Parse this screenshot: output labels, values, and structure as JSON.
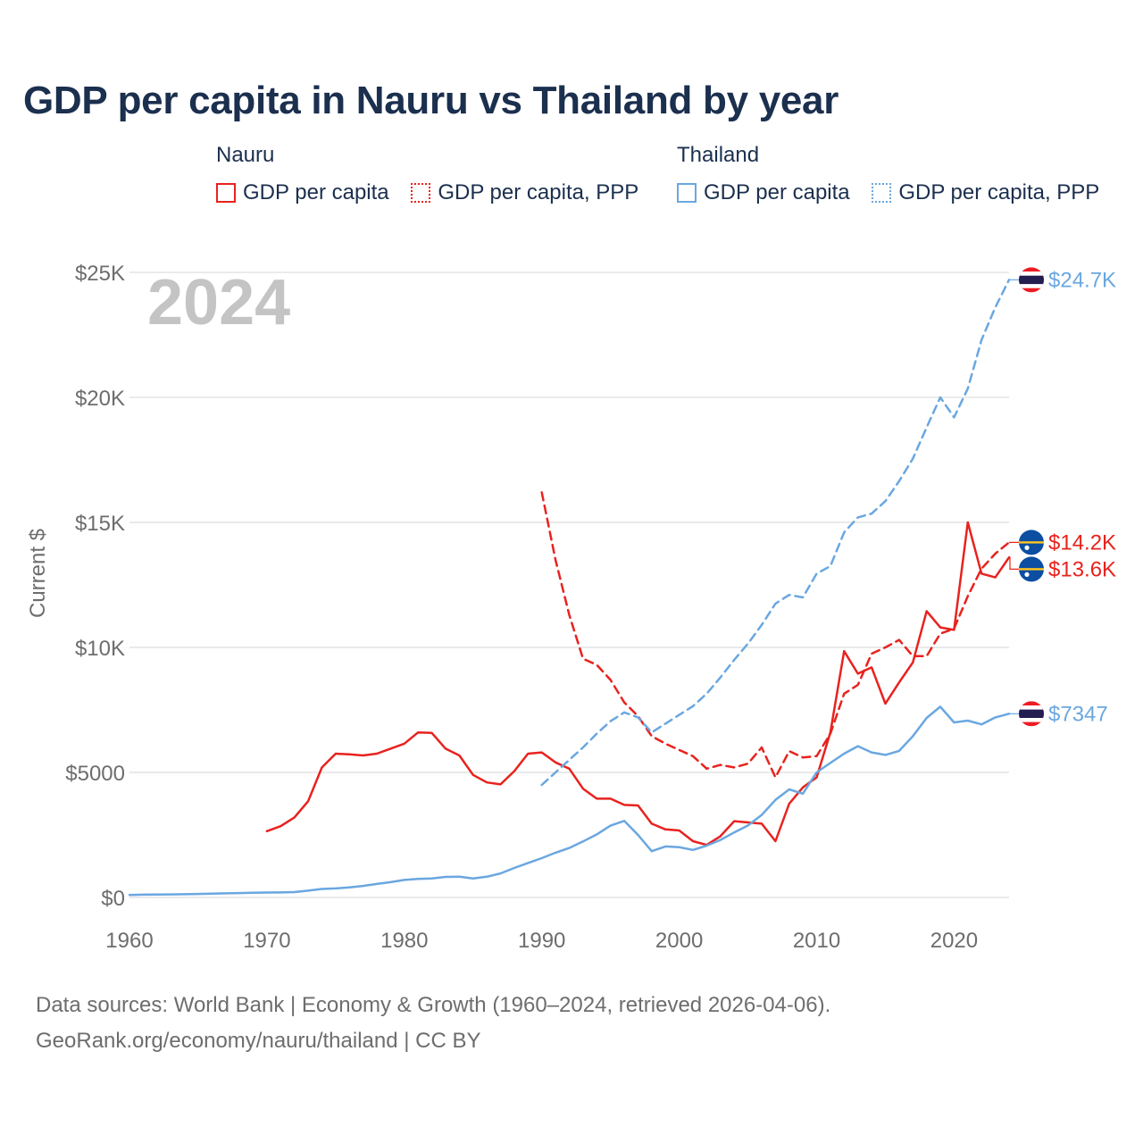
{
  "title": "GDP per capita in Nauru vs Thailand by year",
  "legend": {
    "nauru": {
      "name": "Nauru",
      "gdp": "GDP per capita",
      "ppp": "GDP per capita, PPP"
    },
    "thailand": {
      "name": "Thailand",
      "gdp": "GDP per capita",
      "ppp": "GDP per capita, PPP"
    }
  },
  "colors": {
    "nauru": "#e8221e",
    "thailand": "#6aa7e0",
    "title": "#1b2f4e",
    "year_watermark": "#c4c4c4"
  },
  "footer": {
    "line1": "Data sources: World Bank | Economy & Growth (1960–2024, retrieved 2026-04-06).",
    "line2": "GeoRank.org/economy/nauru/thailand | CC BY"
  },
  "chart_data": {
    "type": "line",
    "year_label": "2024",
    "ylabel": "Current $",
    "xlim": [
      1960,
      2024
    ],
    "ylim": [
      0,
      25000
    ],
    "xticks": [
      {
        "value": 1960,
        "label": "1960"
      },
      {
        "value": 1970,
        "label": "1970"
      },
      {
        "value": 1980,
        "label": "1980"
      },
      {
        "value": 1990,
        "label": "1990"
      },
      {
        "value": 2000,
        "label": "2000"
      },
      {
        "value": 2010,
        "label": "2010"
      },
      {
        "value": 2020,
        "label": "2020"
      }
    ],
    "yticks": [
      {
        "value": 0,
        "label": "$0"
      },
      {
        "value": 5000,
        "label": "$5000"
      },
      {
        "value": 10000,
        "label": "$10K"
      },
      {
        "value": 15000,
        "label": "$15K"
      },
      {
        "value": 20000,
        "label": "$20K"
      },
      {
        "value": 25000,
        "label": "$25K"
      }
    ],
    "series": [
      {
        "name": "Nauru GDP per capita",
        "country": "Nauru",
        "style": "solid",
        "color": "#e8221e",
        "end_label": "$13.6K",
        "end_value": 13600,
        "flag": "nauru",
        "points": [
          [
            1970,
            2650
          ],
          [
            1971,
            2850
          ],
          [
            1972,
            3200
          ],
          [
            1973,
            3850
          ],
          [
            1974,
            5200
          ],
          [
            1975,
            5750
          ],
          [
            1976,
            5720
          ],
          [
            1977,
            5680
          ],
          [
            1978,
            5750
          ],
          [
            1979,
            5950
          ],
          [
            1980,
            6150
          ],
          [
            1981,
            6600
          ],
          [
            1982,
            6580
          ],
          [
            1983,
            5950
          ],
          [
            1984,
            5680
          ],
          [
            1985,
            4900
          ],
          [
            1986,
            4600
          ],
          [
            1987,
            4520
          ],
          [
            1988,
            5050
          ],
          [
            1989,
            5750
          ],
          [
            1990,
            5800
          ],
          [
            1991,
            5400
          ],
          [
            1992,
            5150
          ],
          [
            1993,
            4350
          ],
          [
            1994,
            3950
          ],
          [
            1995,
            3950
          ],
          [
            1996,
            3700
          ],
          [
            1997,
            3680
          ],
          [
            1998,
            2950
          ],
          [
            1999,
            2720
          ],
          [
            2000,
            2680
          ],
          [
            2001,
            2250
          ],
          [
            2002,
            2100
          ],
          [
            2003,
            2450
          ],
          [
            2004,
            3050
          ],
          [
            2005,
            3000
          ],
          [
            2006,
            2950
          ],
          [
            2007,
            2250
          ],
          [
            2008,
            3750
          ],
          [
            2009,
            4400
          ],
          [
            2010,
            4800
          ],
          [
            2011,
            6600
          ],
          [
            2012,
            9850
          ],
          [
            2013,
            8950
          ],
          [
            2014,
            9200
          ],
          [
            2015,
            7750
          ],
          [
            2016,
            8600
          ],
          [
            2017,
            9400
          ],
          [
            2018,
            11450
          ],
          [
            2019,
            10800
          ],
          [
            2020,
            10700
          ],
          [
            2021,
            15000
          ],
          [
            2022,
            12950
          ],
          [
            2023,
            12800
          ],
          [
            2024,
            13600
          ]
        ]
      },
      {
        "name": "Nauru GDP per capita, PPP",
        "country": "Nauru",
        "style": "dashed",
        "color": "#e8221e",
        "end_label": "$14.2K",
        "end_value": 14200,
        "flag": "nauru",
        "points": [
          [
            1990,
            16200
          ],
          [
            1991,
            13500
          ],
          [
            1992,
            11300
          ],
          [
            1993,
            9550
          ],
          [
            1994,
            9300
          ],
          [
            1995,
            8700
          ],
          [
            1996,
            7800
          ],
          [
            1997,
            7250
          ],
          [
            1998,
            6450
          ],
          [
            1999,
            6150
          ],
          [
            2000,
            5900
          ],
          [
            2001,
            5650
          ],
          [
            2002,
            5150
          ],
          [
            2003,
            5300
          ],
          [
            2004,
            5200
          ],
          [
            2005,
            5350
          ],
          [
            2006,
            6000
          ],
          [
            2007,
            4800
          ],
          [
            2008,
            5850
          ],
          [
            2009,
            5600
          ],
          [
            2010,
            5650
          ],
          [
            2011,
            6550
          ],
          [
            2012,
            8150
          ],
          [
            2013,
            8500
          ],
          [
            2014,
            9750
          ],
          [
            2015,
            10000
          ],
          [
            2016,
            10300
          ],
          [
            2017,
            9650
          ],
          [
            2018,
            9650
          ],
          [
            2019,
            10550
          ],
          [
            2020,
            10750
          ],
          [
            2021,
            12050
          ],
          [
            2022,
            13150
          ],
          [
            2023,
            13750
          ],
          [
            2024,
            14200
          ]
        ]
      },
      {
        "name": "Thailand GDP per capita",
        "country": "Thailand",
        "style": "solid",
        "color": "#6aa7e0",
        "end_label": "$7347",
        "end_value": 7347,
        "flag": "thailand",
        "points": [
          [
            1960,
            100
          ],
          [
            1961,
            110
          ],
          [
            1962,
            115
          ],
          [
            1963,
            120
          ],
          [
            1964,
            130
          ],
          [
            1965,
            140
          ],
          [
            1966,
            155
          ],
          [
            1967,
            165
          ],
          [
            1968,
            175
          ],
          [
            1969,
            185
          ],
          [
            1970,
            195
          ],
          [
            1971,
            200
          ],
          [
            1972,
            215
          ],
          [
            1973,
            270
          ],
          [
            1974,
            340
          ],
          [
            1975,
            360
          ],
          [
            1976,
            400
          ],
          [
            1977,
            460
          ],
          [
            1978,
            540
          ],
          [
            1979,
            610
          ],
          [
            1980,
            700
          ],
          [
            1981,
            740
          ],
          [
            1982,
            760
          ],
          [
            1983,
            820
          ],
          [
            1984,
            830
          ],
          [
            1985,
            760
          ],
          [
            1986,
            830
          ],
          [
            1987,
            960
          ],
          [
            1988,
            1180
          ],
          [
            1989,
            1380
          ],
          [
            1990,
            1570
          ],
          [
            1991,
            1790
          ],
          [
            1992,
            1980
          ],
          [
            1993,
            2240
          ],
          [
            1994,
            2520
          ],
          [
            1995,
            2870
          ],
          [
            1996,
            3060
          ],
          [
            1997,
            2500
          ],
          [
            1998,
            1850
          ],
          [
            1999,
            2040
          ],
          [
            2000,
            2010
          ],
          [
            2001,
            1900
          ],
          [
            2002,
            2070
          ],
          [
            2003,
            2300
          ],
          [
            2004,
            2600
          ],
          [
            2005,
            2880
          ],
          [
            2006,
            3300
          ],
          [
            2007,
            3900
          ],
          [
            2008,
            4320
          ],
          [
            2009,
            4150
          ],
          [
            2010,
            5000
          ],
          [
            2011,
            5380
          ],
          [
            2012,
            5750
          ],
          [
            2013,
            6050
          ],
          [
            2014,
            5800
          ],
          [
            2015,
            5700
          ],
          [
            2016,
            5860
          ],
          [
            2017,
            6450
          ],
          [
            2018,
            7180
          ],
          [
            2019,
            7630
          ],
          [
            2020,
            7000
          ],
          [
            2021,
            7070
          ],
          [
            2022,
            6920
          ],
          [
            2023,
            7200
          ],
          [
            2024,
            7347
          ]
        ]
      },
      {
        "name": "Thailand GDP per capita, PPP",
        "country": "Thailand",
        "style": "dashed",
        "color": "#6aa7e0",
        "end_label": "$24.7K",
        "end_value": 24700,
        "flag": "thailand",
        "points": [
          [
            1990,
            4500
          ],
          [
            1991,
            5000
          ],
          [
            1992,
            5500
          ],
          [
            1993,
            6000
          ],
          [
            1994,
            6550
          ],
          [
            1995,
            7050
          ],
          [
            1996,
            7400
          ],
          [
            1997,
            7200
          ],
          [
            1998,
            6600
          ],
          [
            1999,
            6950
          ],
          [
            2000,
            7300
          ],
          [
            2001,
            7650
          ],
          [
            2002,
            8150
          ],
          [
            2003,
            8800
          ],
          [
            2004,
            9500
          ],
          [
            2005,
            10150
          ],
          [
            2006,
            10900
          ],
          [
            2007,
            11750
          ],
          [
            2008,
            12100
          ],
          [
            2009,
            12000
          ],
          [
            2010,
            12950
          ],
          [
            2011,
            13250
          ],
          [
            2012,
            14600
          ],
          [
            2013,
            15200
          ],
          [
            2014,
            15350
          ],
          [
            2015,
            15850
          ],
          [
            2016,
            16650
          ],
          [
            2017,
            17550
          ],
          [
            2018,
            18800
          ],
          [
            2019,
            20000
          ],
          [
            2020,
            19200
          ],
          [
            2021,
            20350
          ],
          [
            2022,
            22300
          ],
          [
            2023,
            23600
          ],
          [
            2024,
            24700
          ]
        ]
      }
    ]
  }
}
